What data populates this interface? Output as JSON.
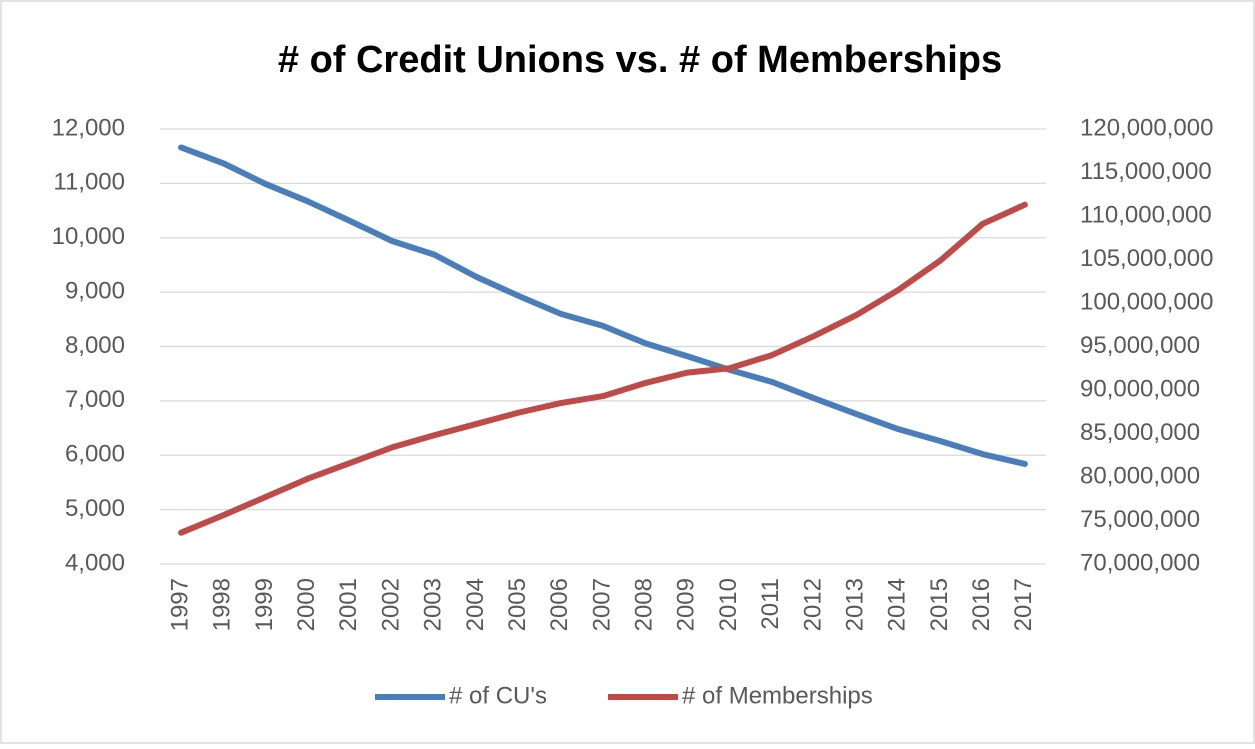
{
  "chart_data": {
    "type": "line",
    "title": "# of Credit Unions vs. # of Memberships",
    "categories": [
      "1997",
      "1998",
      "1999",
      "2000",
      "2001",
      "2002",
      "2003",
      "2004",
      "2005",
      "2006",
      "2007",
      "2008",
      "2009",
      "2010",
      "2011",
      "2012",
      "2013",
      "2014",
      "2015",
      "2016",
      "2017"
    ],
    "series": [
      {
        "name": "# of CU's",
        "color": "#4a7ebb",
        "values": [
          11660,
          11370,
          10990,
          10670,
          10310,
          9940,
          9690,
          9280,
          8930,
          8600,
          8380,
          8060,
          7820,
          7570,
          7350,
          7050,
          6760,
          6480,
          6260,
          6020,
          5840
        ]
      },
      {
        "name": "# of Memberships",
        "color": "#be4b48",
        "axis": "y2",
        "values": [
          73600000,
          75600000,
          77700000,
          79800000,
          81600000,
          83400000,
          84800000,
          86100000,
          87400000,
          88500000,
          89300000,
          90800000,
          92000000,
          92500000,
          94000000,
          96200000,
          98600000,
          101500000,
          104900000,
          109100000,
          111300000
        ]
      }
    ],
    "ylim": [
      4000,
      12000
    ],
    "yticks": [
      {
        "value": 4000,
        "label": "4,000"
      },
      {
        "value": 5000,
        "label": "5,000"
      },
      {
        "value": 6000,
        "label": "6,000"
      },
      {
        "value": 7000,
        "label": "7,000"
      },
      {
        "value": 8000,
        "label": "8,000"
      },
      {
        "value": 9000,
        "label": "9,000"
      },
      {
        "value": 10000,
        "label": "10,000"
      },
      {
        "value": 11000,
        "label": "11,000"
      },
      {
        "value": 12000,
        "label": "12,000"
      }
    ],
    "y2lim": [
      70000000,
      120000000
    ],
    "y2ticks": [
      {
        "value": 70000000,
        "label": "70,000,000"
      },
      {
        "value": 75000000,
        "label": "75,000,000"
      },
      {
        "value": 80000000,
        "label": "80,000,000"
      },
      {
        "value": 85000000,
        "label": "85,000,000"
      },
      {
        "value": 90000000,
        "label": "90,000,000"
      },
      {
        "value": 95000000,
        "label": "95,000,000"
      },
      {
        "value": 100000000,
        "label": "100,000,000"
      },
      {
        "value": 105000000,
        "label": "105,000,000"
      },
      {
        "value": 110000000,
        "label": "110,000,000"
      },
      {
        "value": 115000000,
        "label": "115,000,000"
      },
      {
        "value": 120000000,
        "label": "120,000,000"
      }
    ],
    "grid": true,
    "legend": "bottom"
  }
}
